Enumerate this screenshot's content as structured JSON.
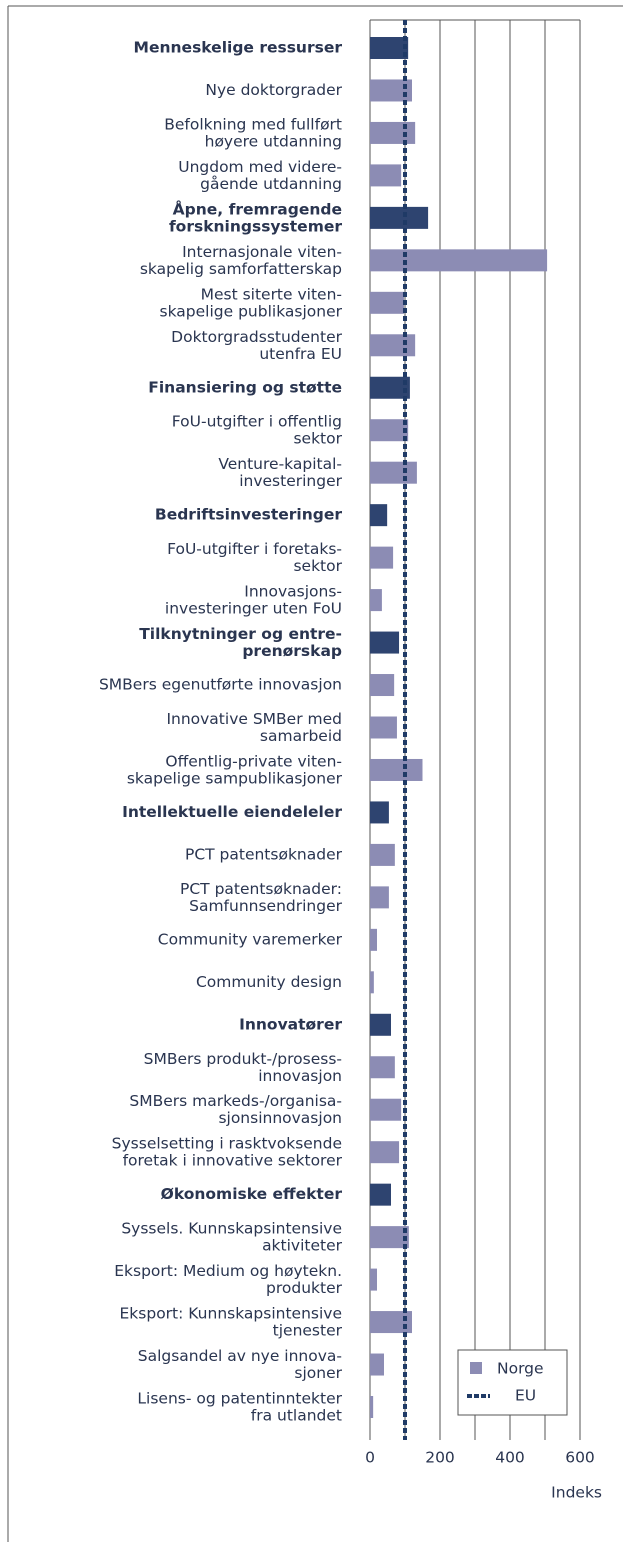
{
  "chart_data": {
    "type": "hbar",
    "categories": [
      "Menneskelige ressurser",
      "Nye doktorgrader",
      "Befolkning med fullført\nhøyere utdanning",
      "Ungdom med videre-\ngående utdanning",
      "Åpne, fremragende\nforskningssystemer",
      "Internasjonale viten-\nskapelig samforfatterskap",
      "Mest siterte viten-\nskapelige publikasjoner",
      "Doktorgradsstudenter\nutenfra EU",
      "Finansiering og støtte",
      "FoU-utgifter i offentlig\nsektor",
      "Venture-kapital-\ninvesteringer",
      "Bedriftsinvesteringer",
      "FoU-utgifter i foretaks-\nsektor",
      "Innovasjons-\ninvesteringer uten FoU",
      "Tilknytninger og entre-\nprenørskap",
      "SMBers egenutførte innovasjon",
      "Innovative SMBer med\nsamarbeid",
      "Offentlig-private viten-\nskapelige sampublikasjoner",
      "Intellektuelle eiendeleler",
      "PCT patentsøknader",
      "PCT patentsøknader:\nSamfunnsendringer",
      "Community varemerker",
      "Community design",
      "Innovatører",
      "SMBers produkt-/prosess-\ninnovasjon",
      "SMBers markeds-/organisa-\nsjonsinnovasjon",
      "Sysselsetting i rasktvoksende\nforetak i innovative sektorer",
      "Økonomiske effekter",
      "Syssels. Kunnskapsintensive\naktiviteter",
      "Eksport: Medium og høytekn.\nprodukter",
      "Eksport: Kunnskapsintensive\ntjenester",
      "Salgsandel av nye innova-\nsjoner",
      "Lisens- og patentinntekter\nfra utlandet"
    ],
    "series": [
      {
        "name": "Norge",
        "color": "#8c8cb4",
        "values": [
          109,
          120,
          129,
          89,
          166,
          506,
          97,
          129,
          114,
          109,
          134,
          49,
          66,
          34,
          83,
          69,
          77,
          150,
          54,
          71,
          54,
          20,
          11,
          60,
          71,
          89,
          83,
          60,
          111,
          20,
          120,
          40,
          9
        ]
      }
    ],
    "header_color": "#2e4470",
    "headers": [
      0,
      4,
      8,
      11,
      14,
      18,
      23,
      27
    ],
    "reference": {
      "name": "EU",
      "value": 100,
      "color": "#1f3a66"
    },
    "xlim": [
      0,
      600
    ],
    "xticks": [
      0,
      200,
      400,
      600
    ],
    "minor_xticks": [
      100,
      300,
      500
    ],
    "xlabel": "Indeks",
    "grid": true,
    "legend": "lower right"
  }
}
